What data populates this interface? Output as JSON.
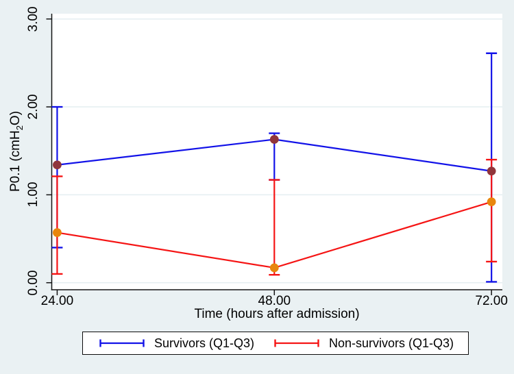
{
  "figure": {
    "background_color": "#eaf1f3",
    "plot_background": "#ffffff",
    "grid_color": "#e4eef1",
    "axis_color": "#141414",
    "text_color": "#000000"
  },
  "chart_data": {
    "type": "line",
    "title": "",
    "xlabel": "Time (hours after admission)",
    "ylabel": {
      "prefix": "P0.1 (cmH",
      "sub": "2",
      "suffix": "O)"
    },
    "x": [
      24,
      48,
      72
    ],
    "xtick_labels": [
      "24.00",
      "48.00",
      "72.00"
    ],
    "ytick_values": [
      0,
      1,
      2,
      3
    ],
    "ytick_labels": [
      "0.00",
      "1.00",
      "2.00",
      "3.00"
    ],
    "xlim": [
      23.4,
      73.2
    ],
    "ylim": [
      -0.08,
      3.06
    ],
    "grid": "horizontal",
    "legend_position": "bottom",
    "error_bar_style": "Q1-Q3 whiskers with caps",
    "series": [
      {
        "name": "Survivors (Q1-Q3)",
        "line_color": "#1212e8",
        "marker_color": "#90353b",
        "median": [
          1.34,
          1.63,
          1.27
        ],
        "q1": [
          0.4,
          1.17,
          0.01
        ],
        "q3": [
          2.0,
          1.7,
          2.61
        ]
      },
      {
        "name": "Non-survivors (Q1-Q3)",
        "line_color": "#f51414",
        "marker_color": "#e8860d",
        "median": [
          0.57,
          0.17,
          0.92
        ],
        "q1": [
          0.1,
          0.09,
          0.24
        ],
        "q3": [
          1.21,
          1.17,
          1.4
        ]
      }
    ]
  }
}
